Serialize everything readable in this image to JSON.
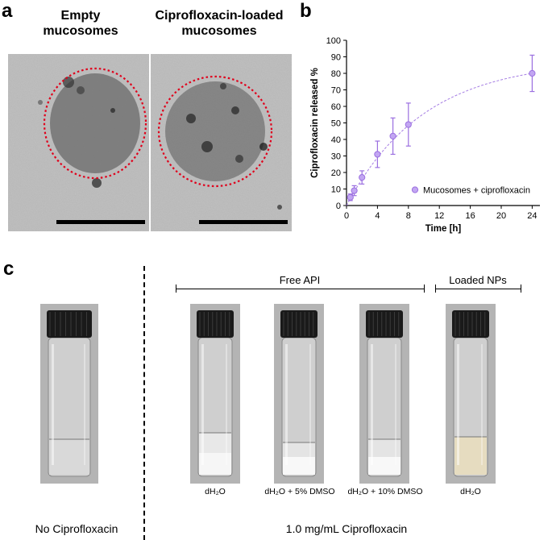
{
  "panels": {
    "a": "a",
    "b": "b",
    "c": "c"
  },
  "tem": {
    "empty_title_line1": "Empty",
    "empty_title_line2": "mucosomes",
    "loaded_title_line1": "Ciprofloxacin-loaded",
    "loaded_title_line2": "mucosomes"
  },
  "colors": {
    "series": "#9b6fe0",
    "circle": "#e0001b"
  },
  "chart_data": {
    "type": "scatter",
    "x": [
      0.5,
      1,
      2,
      4,
      6,
      8,
      24
    ],
    "y": [
      5,
      9,
      17,
      31,
      42,
      49,
      80
    ],
    "yerr": [
      2,
      3,
      4,
      8,
      11,
      13,
      11
    ],
    "fit": "dashed exponential curve",
    "series": [
      {
        "name": "Mucosomes + ciprofloxacin"
      }
    ],
    "xlabel": "Time [h]",
    "ylabel": "Ciprofloxacin released %",
    "xticks": [
      0,
      4,
      8,
      12,
      16,
      20,
      24
    ],
    "yticks": [
      0,
      10,
      20,
      30,
      40,
      50,
      60,
      70,
      80,
      90,
      100
    ],
    "xlim": [
      0,
      25
    ],
    "ylim": [
      0,
      100
    ],
    "legend_position": "bottom-right",
    "grid": false
  },
  "panel_c": {
    "free_api_label": "Free API",
    "loaded_nps_label": "Loaded NPs",
    "vial_captions": [
      "dH₂O",
      "dH₂O + 5% DMSO",
      "dH₂O + 10% DMSO",
      "dH₂O"
    ],
    "no_cipro_label": "No Ciprofloxacin",
    "cipro_label": "1.0 mg/mL Ciprofloxacin"
  }
}
